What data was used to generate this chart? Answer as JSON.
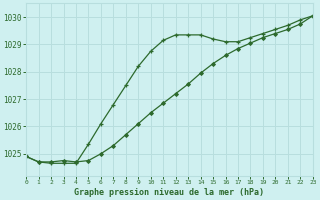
{
  "title": "Graphe pression niveau de la mer (hPa)",
  "background_color": "#cff0f0",
  "grid_color": "#b8dede",
  "line_color": "#2d6a2d",
  "x_ticks": [
    0,
    1,
    2,
    3,
    4,
    5,
    6,
    7,
    8,
    9,
    10,
    11,
    12,
    13,
    14,
    15,
    16,
    17,
    18,
    19,
    20,
    21,
    22,
    23
  ],
  "y_ticks": [
    1025,
    1026,
    1027,
    1028,
    1029,
    1030
  ],
  "xlim": [
    0,
    23
  ],
  "ylim": [
    1024.2,
    1030.5
  ],
  "line1_x": [
    0,
    1,
    2,
    3,
    4,
    5,
    6,
    7,
    8,
    9,
    10,
    11,
    12,
    13,
    14,
    15,
    16,
    17,
    18,
    19,
    20,
    21,
    22,
    23
  ],
  "line1_y": [
    1024.9,
    1024.7,
    1024.65,
    1024.65,
    1024.65,
    1025.35,
    1026.1,
    1026.8,
    1027.5,
    1028.2,
    1028.75,
    1029.15,
    1029.35,
    1029.35,
    1029.35,
    1029.2,
    1029.1,
    1029.1,
    1029.25,
    1029.4,
    1029.55,
    1029.7,
    1029.9,
    1030.05
  ],
  "line2_x": [
    0,
    1,
    2,
    3,
    4,
    5,
    6,
    7,
    8,
    9,
    10,
    11,
    12,
    13,
    14,
    15,
    16,
    17,
    18,
    19,
    20,
    21,
    22,
    23
  ],
  "line2_y": [
    1024.9,
    1024.7,
    1024.7,
    1024.75,
    1024.7,
    1024.75,
    1025.0,
    1025.3,
    1025.7,
    1026.1,
    1026.5,
    1026.85,
    1027.2,
    1027.55,
    1027.95,
    1028.3,
    1028.6,
    1028.85,
    1029.05,
    1029.25,
    1029.4,
    1029.55,
    1029.75,
    1030.05
  ],
  "marker1": "+",
  "marker2": "D",
  "markersize1": 3.5,
  "markersize2": 2.0
}
